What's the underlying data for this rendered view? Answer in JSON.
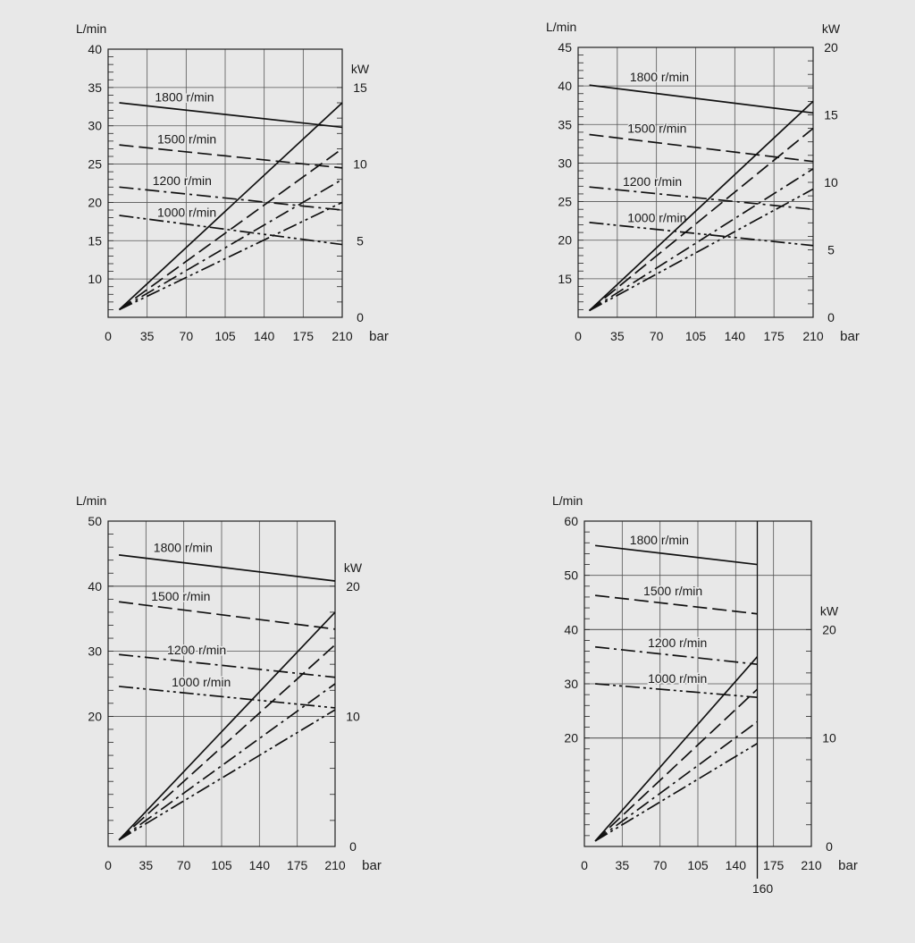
{
  "chart_data": [
    {
      "type": "line",
      "title": "",
      "x_unit": "bar",
      "y_unit": "L/min",
      "y2_unit": "kW",
      "x_ticks": [
        0,
        35,
        70,
        105,
        140,
        175,
        210
      ],
      "xlim": [
        0,
        210
      ],
      "ylim": [
        5,
        40
      ],
      "y_ticks": [
        10,
        15,
        20,
        25,
        30,
        35,
        40
      ],
      "y2lim": [
        0,
        17.5
      ],
      "y2_ticks": [
        0,
        5,
        10,
        15
      ],
      "grid": true,
      "flow_series": [
        {
          "name": "1800 r/min",
          "style": "solid",
          "x": [
            10,
            210
          ],
          "y": [
            33.0,
            29.8
          ]
        },
        {
          "name": "1500 r/min",
          "style": "dash",
          "x": [
            10,
            210
          ],
          "y": [
            27.5,
            24.5
          ]
        },
        {
          "name": "1200 r/min",
          "style": "dashdot",
          "x": [
            10,
            210
          ],
          "y": [
            22.0,
            19.0
          ]
        },
        {
          "name": "1000 r/min",
          "style": "dashdotdot",
          "x": [
            10,
            210
          ],
          "y": [
            18.3,
            14.5
          ]
        }
      ],
      "power_series": [
        {
          "style": "solid",
          "x": [
            10,
            210
          ],
          "y": [
            0.5,
            14.0
          ]
        },
        {
          "style": "dash",
          "x": [
            10,
            210
          ],
          "y": [
            0.5,
            11.0
          ]
        },
        {
          "style": "dashdot",
          "x": [
            10,
            210
          ],
          "y": [
            0.5,
            9.0
          ]
        },
        {
          "style": "dashdotdot",
          "x": [
            10,
            210
          ],
          "y": [
            0.5,
            7.5
          ]
        }
      ]
    },
    {
      "type": "line",
      "title": "",
      "x_unit": "bar",
      "y_unit": "L/min",
      "y2_unit": "kW",
      "x_ticks": [
        0,
        35,
        70,
        105,
        140,
        175,
        210
      ],
      "xlim": [
        0,
        210
      ],
      "ylim": [
        10,
        45
      ],
      "y_ticks": [
        15,
        20,
        25,
        30,
        35,
        40,
        45
      ],
      "y2lim": [
        0,
        20
      ],
      "y2_ticks": [
        0,
        5,
        10,
        15,
        20
      ],
      "grid": true,
      "flow_series": [
        {
          "name": "1800 r/min",
          "style": "solid",
          "x": [
            10,
            210
          ],
          "y": [
            40.1,
            36.5
          ]
        },
        {
          "name": "1500 r/min",
          "style": "dash",
          "x": [
            10,
            210
          ],
          "y": [
            33.7,
            30.2
          ]
        },
        {
          "name": "1200 r/min",
          "style": "dashdot",
          "x": [
            10,
            210
          ],
          "y": [
            26.9,
            24.0
          ]
        },
        {
          "name": "1000 r/min",
          "style": "dashdotdot",
          "x": [
            10,
            210
          ],
          "y": [
            22.3,
            19.3
          ]
        }
      ],
      "power_series": [
        {
          "style": "solid",
          "x": [
            10,
            210
          ],
          "y": [
            0.5,
            16.0
          ]
        },
        {
          "style": "dash",
          "x": [
            10,
            210
          ],
          "y": [
            0.5,
            14.0
          ]
        },
        {
          "style": "dashdot",
          "x": [
            10,
            210
          ],
          "y": [
            0.5,
            11.0
          ]
        },
        {
          "style": "dashdotdot",
          "x": [
            10,
            210
          ],
          "y": [
            0.5,
            9.5
          ]
        }
      ]
    },
    {
      "type": "line",
      "title": "",
      "x_unit": "bar",
      "y_unit": "L/min",
      "y2_unit": "kW",
      "x_ticks": [
        0,
        35,
        70,
        105,
        140,
        175,
        210
      ],
      "xlim": [
        0,
        210
      ],
      "ylim": [
        0,
        50
      ],
      "y_ticks": [
        20,
        30,
        40,
        50
      ],
      "y2lim": [
        0,
        25
      ],
      "y2_ticks": [
        0,
        10,
        20
      ],
      "grid": true,
      "flow_series": [
        {
          "name": "1800 r/min",
          "style": "solid",
          "x": [
            10,
            210
          ],
          "y": [
            44.8,
            40.8
          ]
        },
        {
          "name": "1500 r/min",
          "style": "dash",
          "x": [
            10,
            210
          ],
          "y": [
            37.6,
            33.4
          ]
        },
        {
          "name": "1200 r/min",
          "style": "dashdot",
          "x": [
            10,
            210
          ],
          "y": [
            29.5,
            26.0
          ]
        },
        {
          "name": "1000 r/min",
          "style": "dashdotdot",
          "x": [
            10,
            210
          ],
          "y": [
            24.6,
            21.3
          ]
        }
      ],
      "power_series": [
        {
          "style": "solid",
          "x": [
            10,
            210
          ],
          "y": [
            0.5,
            18.0
          ]
        },
        {
          "style": "dash",
          "x": [
            10,
            210
          ],
          "y": [
            0.5,
            15.5
          ]
        },
        {
          "style": "dashdot",
          "x": [
            10,
            210
          ],
          "y": [
            0.5,
            12.5
          ]
        },
        {
          "style": "dashdotdot",
          "x": [
            10,
            210
          ],
          "y": [
            0.5,
            10.5
          ]
        }
      ]
    },
    {
      "type": "line",
      "title": "",
      "x_unit": "bar",
      "y_unit": "L/min",
      "y2_unit": "kW",
      "x_ticks": [
        0,
        35,
        70,
        105,
        140,
        175,
        210
      ],
      "xlim": [
        0,
        210
      ],
      "ylim": [
        0,
        60
      ],
      "y_ticks": [
        20,
        30,
        40,
        50,
        60
      ],
      "y2lim": [
        0,
        30
      ],
      "y2_ticks": [
        0,
        10,
        20
      ],
      "grid": true,
      "max_pressure": 160,
      "max_pressure_label": "160",
      "flow_series": [
        {
          "name": "1800 r/min",
          "style": "solid",
          "x": [
            10,
            160
          ],
          "y": [
            55.5,
            52.0
          ]
        },
        {
          "name": "1500 r/min",
          "style": "dash",
          "x": [
            10,
            160
          ],
          "y": [
            46.3,
            42.9
          ]
        },
        {
          "name": "1200 r/min",
          "style": "dashdot",
          "x": [
            10,
            160
          ],
          "y": [
            36.8,
            33.6
          ]
        },
        {
          "name": "1000 r/min",
          "style": "dashdotdot",
          "x": [
            10,
            160
          ],
          "y": [
            30.0,
            27.5
          ]
        }
      ],
      "power_series": [
        {
          "style": "solid",
          "x": [
            10,
            160
          ],
          "y": [
            0.5,
            17.5
          ]
        },
        {
          "style": "dash",
          "x": [
            10,
            160
          ],
          "y": [
            0.5,
            14.5
          ]
        },
        {
          "style": "dashdot",
          "x": [
            10,
            160
          ],
          "y": [
            0.5,
            11.5
          ]
        },
        {
          "style": "dashdotdot",
          "x": [
            10,
            160
          ],
          "y": [
            0.5,
            9.5
          ]
        }
      ]
    }
  ]
}
